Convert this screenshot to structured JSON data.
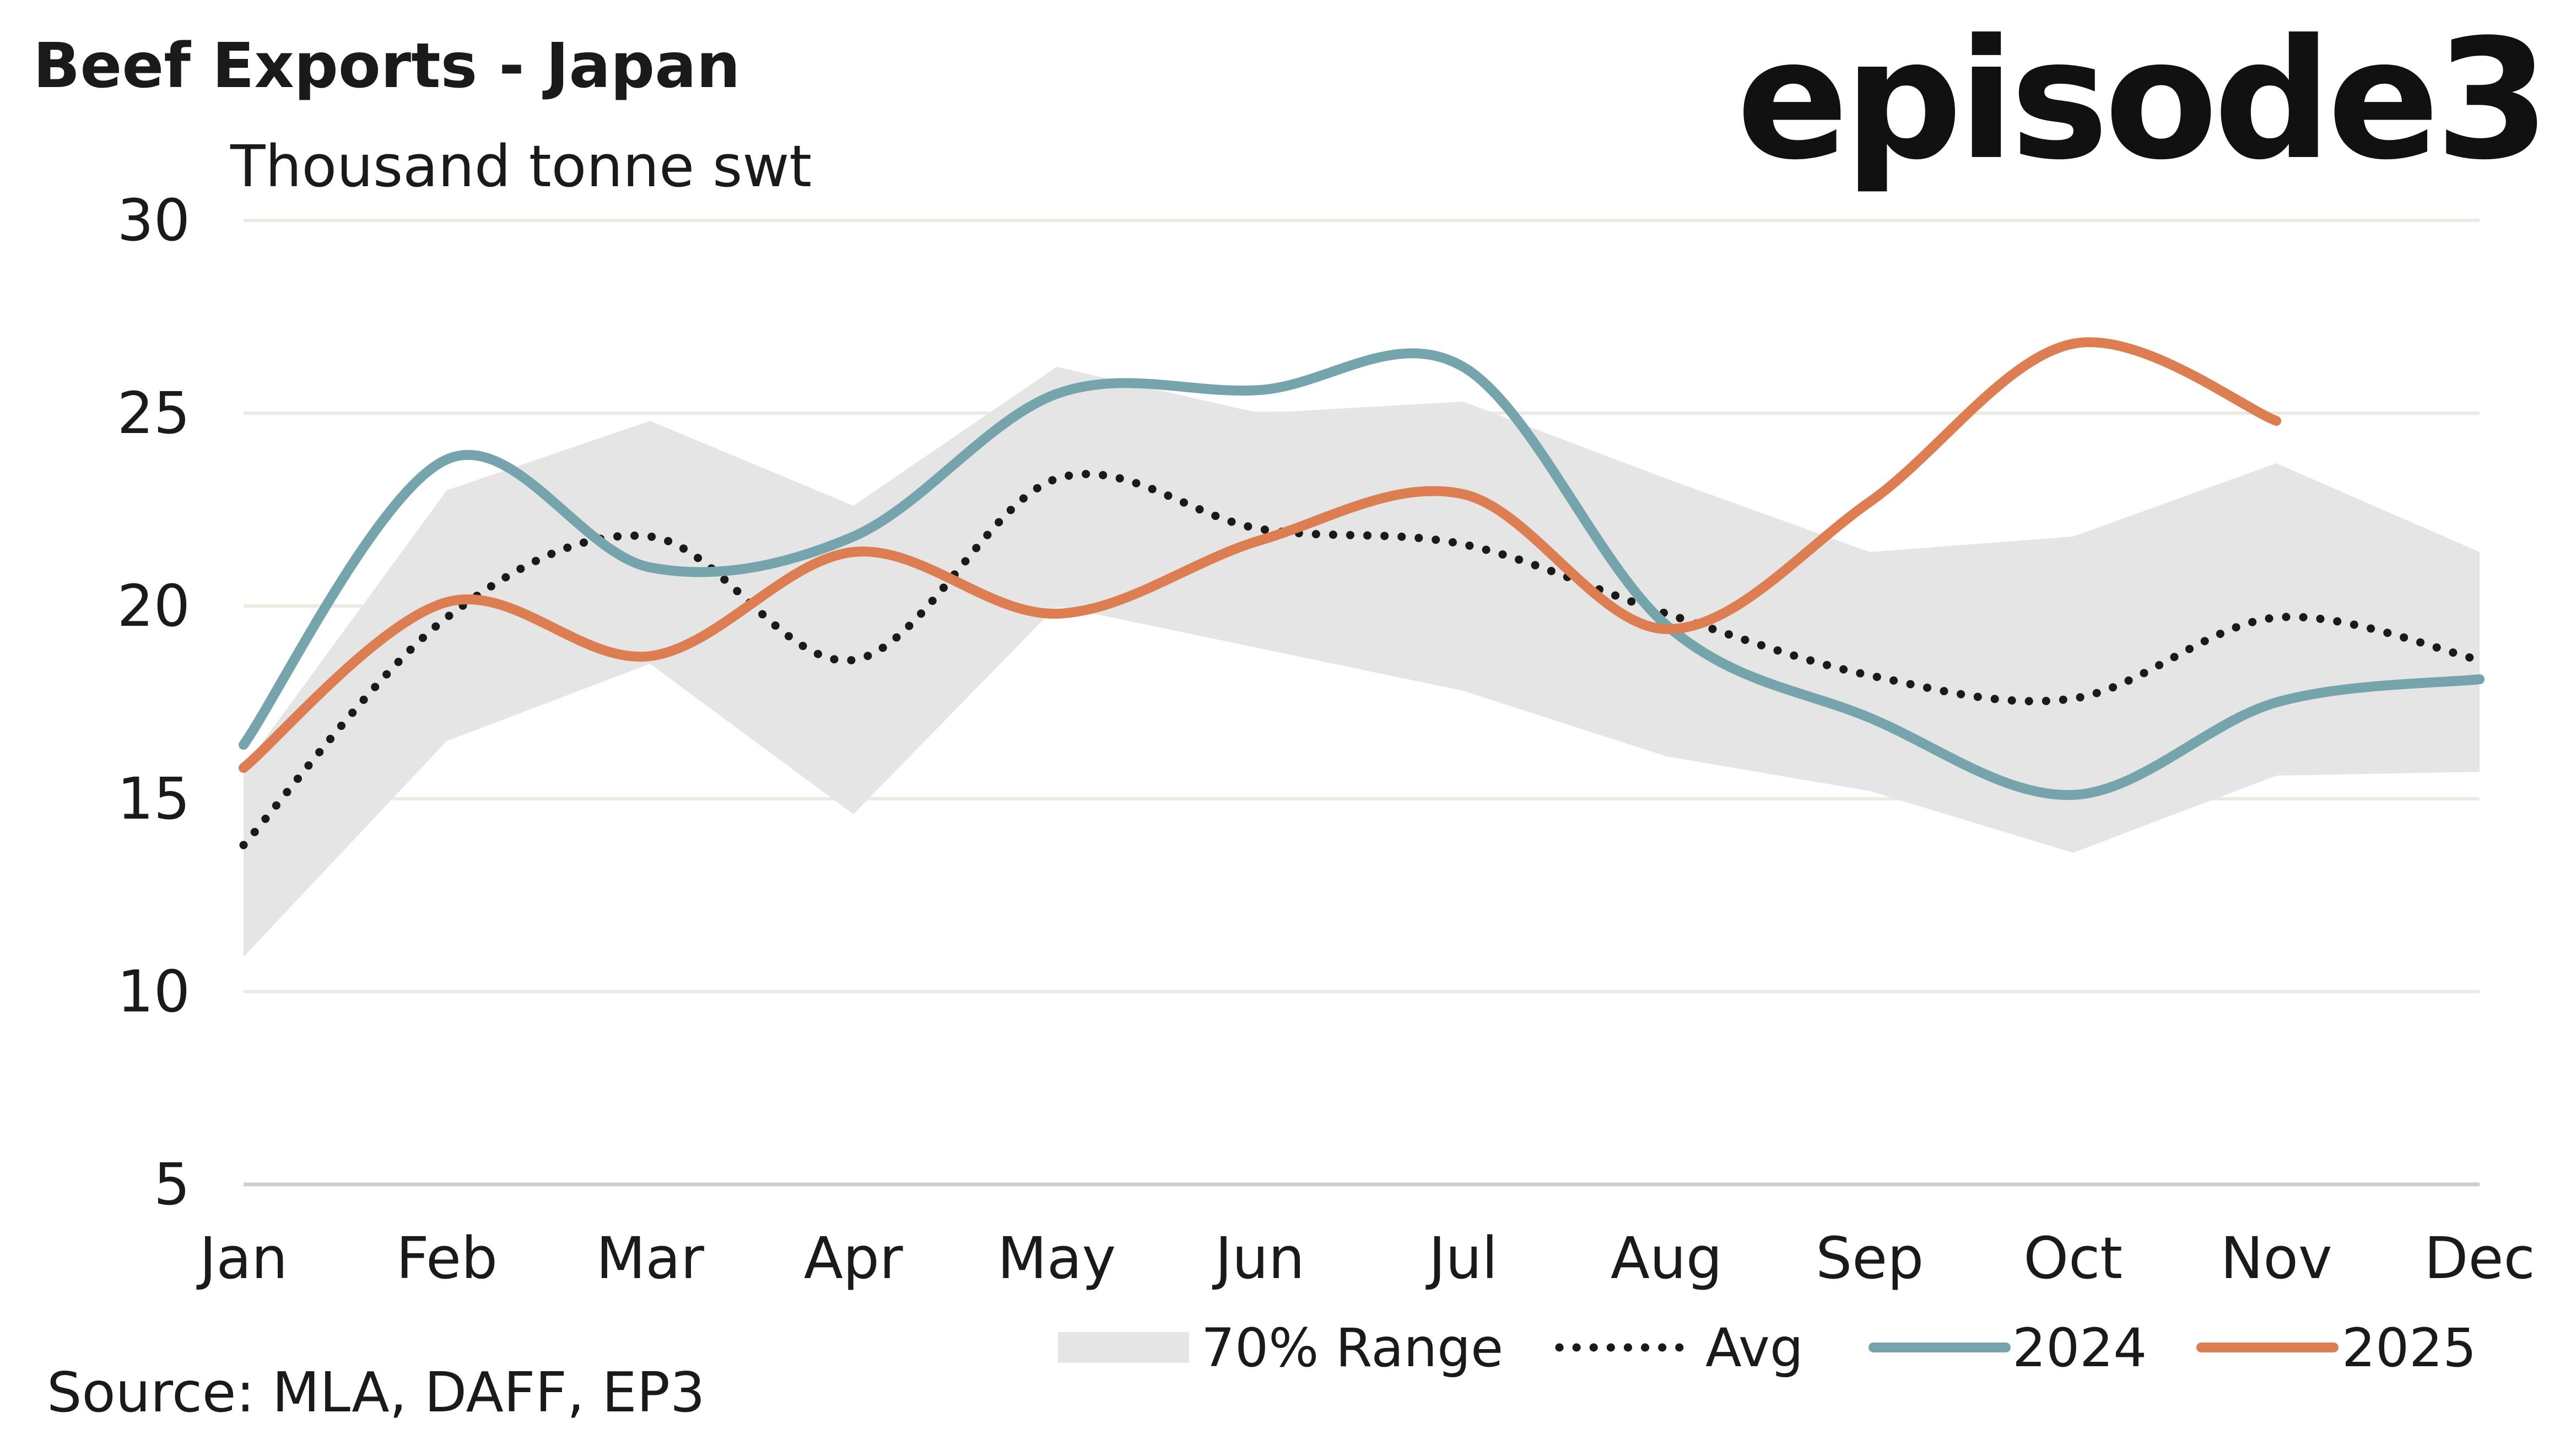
{
  "colors": {
    "range": "#e5e5e5",
    "avg": "#1a1a1a",
    "series_2024": "#76a4ac",
    "series_2025": "#dd7d52",
    "grid": "#ecebe3",
    "axis": "#cfcfcf"
  },
  "brand": "episode3",
  "source": "Source: MLA, DAFF, EP3",
  "chart_data": {
    "type": "line",
    "title": "Beef Exports - Japan",
    "ylabel": "Thousand tonne swt",
    "xlabel": "",
    "categories": [
      "Jan",
      "Feb",
      "Mar",
      "Apr",
      "May",
      "Jun",
      "Jul",
      "Aug",
      "Sep",
      "Oct",
      "Nov",
      "Dec"
    ],
    "yticks": [
      5,
      10,
      15,
      20,
      25,
      30
    ],
    "ylim": [
      5,
      30
    ],
    "grid": true,
    "legend_position": "bottom-right",
    "range": {
      "name": "70% Range",
      "lower": [
        10.9,
        16.5,
        18.5,
        14.6,
        20.0,
        18.9,
        17.8,
        16.1,
        15.2,
        13.6,
        15.6,
        15.7
      ],
      "upper": [
        15.8,
        23.0,
        24.8,
        22.6,
        26.2,
        25.0,
        25.3,
        23.3,
        21.4,
        21.8,
        23.7,
        21.4
      ]
    },
    "series": [
      {
        "name": "Avg",
        "style": "dotted",
        "values": [
          13.8,
          19.7,
          21.8,
          18.6,
          23.3,
          22.0,
          21.6,
          19.8,
          18.2,
          17.6,
          19.7,
          18.6
        ]
      },
      {
        "name": "2024",
        "style": "solid",
        "values": [
          16.4,
          23.8,
          21.0,
          21.8,
          25.5,
          25.6,
          26.2,
          19.5,
          17.1,
          15.1,
          17.5,
          18.1
        ]
      },
      {
        "name": "2025",
        "style": "solid",
        "values": [
          15.8,
          20.1,
          18.7,
          21.4,
          19.8,
          21.7,
          22.9,
          19.4,
          22.7,
          26.8,
          24.8,
          null
        ]
      }
    ]
  }
}
